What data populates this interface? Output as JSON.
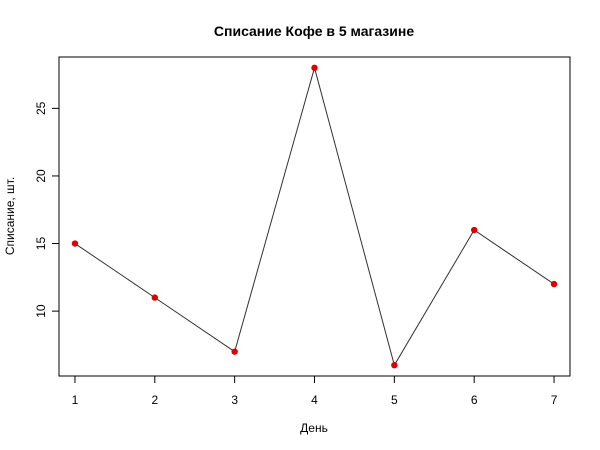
{
  "chart_data": {
    "type": "line",
    "title": "Списание Кофе в 5 магазине",
    "xlabel": "День",
    "ylabel": "Списание, шт.",
    "x": [
      1,
      2,
      3,
      4,
      5,
      6,
      7
    ],
    "y": [
      15,
      11,
      7,
      28,
      6,
      16,
      12
    ],
    "x_ticks": [
      "1",
      "2",
      "3",
      "4",
      "5",
      "6",
      "7"
    ],
    "y_ticks": [
      "10",
      "15",
      "20",
      "25"
    ],
    "y_tick_values": [
      10,
      15,
      20,
      25
    ],
    "xlim": [
      0.8,
      7.2
    ],
    "ylim": [
      5.2,
      28.8
    ],
    "grid": false,
    "line_color": "#333333",
    "point_color": "#e00000"
  }
}
